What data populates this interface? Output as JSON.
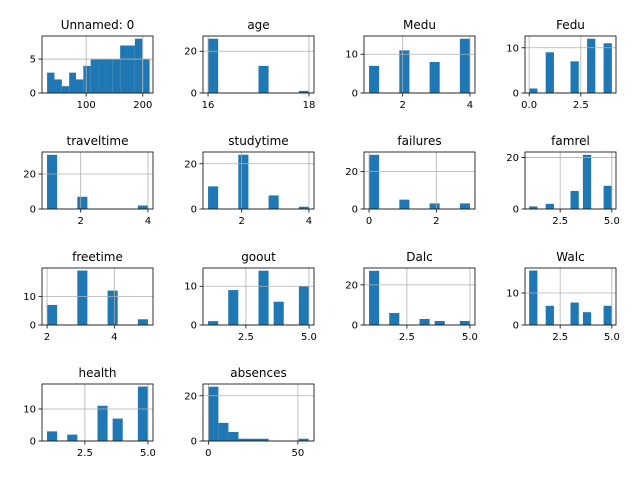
{
  "figure": {
    "bar_color": "#1f77b4",
    "grid_color": "#b0b0b0",
    "grid": true
  },
  "chart_data": [
    {
      "type": "bar",
      "title": "Unnamed: 0",
      "xlim": [
        22,
        218
      ],
      "ylim": [
        0,
        8.4
      ],
      "xticks": [
        {
          "v": 100,
          "l": "100"
        },
        {
          "v": 200,
          "l": "200"
        }
      ],
      "yticks": [
        {
          "v": 0,
          "l": "0"
        },
        {
          "v": 5,
          "l": "5"
        }
      ],
      "bins": [
        [
          31,
          44,
          3
        ],
        [
          44,
          57,
          2
        ],
        [
          57,
          70,
          1
        ],
        [
          70,
          82,
          3
        ],
        [
          82,
          95,
          2
        ],
        [
          95,
          108,
          4
        ],
        [
          108,
          121,
          5
        ],
        [
          121,
          134,
          5
        ],
        [
          134,
          147,
          5
        ],
        [
          147,
          160,
          5
        ],
        [
          160,
          173,
          7
        ],
        [
          173,
          186,
          7
        ],
        [
          186,
          199,
          8
        ],
        [
          199,
          212,
          5
        ]
      ]
    },
    {
      "type": "bar",
      "title": "age",
      "xlim": [
        15.9,
        18.1
      ],
      "ylim": [
        0,
        27.3
      ],
      "xticks": [
        {
          "v": 16,
          "l": "16"
        },
        {
          "v": 18,
          "l": "18"
        }
      ],
      "yticks": [
        {
          "v": 0,
          "l": "0"
        },
        {
          "v": 20,
          "l": "20"
        }
      ],
      "bins": [
        [
          16,
          16.2,
          26
        ],
        [
          16.8,
          17,
          0
        ],
        [
          17,
          17.2,
          13
        ],
        [
          17.8,
          18,
          1
        ]
      ]
    },
    {
      "type": "bar",
      "title": "Medu",
      "xlim": [
        0.85,
        4.15
      ],
      "ylim": [
        0,
        14.7
      ],
      "xticks": [
        {
          "v": 2,
          "l": "2"
        },
        {
          "v": 4,
          "l": "4"
        }
      ],
      "yticks": [
        {
          "v": 0,
          "l": "0"
        },
        {
          "v": 10,
          "l": "10"
        }
      ],
      "bins": [
        [
          1,
          1.3,
          7
        ],
        [
          1.9,
          2.2,
          11
        ],
        [
          2.8,
          3.1,
          8
        ],
        [
          3.7,
          4,
          14
        ]
      ]
    },
    {
      "type": "bar",
      "title": "Fedu",
      "xlim": [
        -0.2,
        4.2
      ],
      "ylim": [
        0,
        12.6
      ],
      "xticks": [
        {
          "v": 0,
          "l": "0.0"
        },
        {
          "v": 2.5,
          "l": "2.5"
        }
      ],
      "yticks": [
        {
          "v": 0,
          "l": "0"
        },
        {
          "v": 10,
          "l": "10"
        }
      ],
      "bins": [
        [
          0,
          0.4,
          1
        ],
        [
          0.8,
          1.2,
          9
        ],
        [
          2,
          2.4,
          7
        ],
        [
          2.8,
          3.2,
          12
        ],
        [
          3.6,
          4,
          11
        ]
      ]
    },
    {
      "type": "bar",
      "title": "traveltime",
      "xlim": [
        0.85,
        4.15
      ],
      "ylim": [
        0,
        32.6
      ],
      "xticks": [
        {
          "v": 2,
          "l": "2"
        },
        {
          "v": 4,
          "l": "4"
        }
      ],
      "yticks": [
        {
          "v": 0,
          "l": "0"
        },
        {
          "v": 20,
          "l": "20"
        }
      ],
      "bins": [
        [
          1,
          1.3,
          31
        ],
        [
          1.9,
          2.2,
          7
        ],
        [
          3.7,
          4,
          2
        ]
      ]
    },
    {
      "type": "bar",
      "title": "studytime",
      "xlim": [
        0.85,
        4.15
      ],
      "ylim": [
        0,
        25.2
      ],
      "xticks": [
        {
          "v": 2,
          "l": "2"
        },
        {
          "v": 4,
          "l": "4"
        }
      ],
      "yticks": [
        {
          "v": 0,
          "l": "0"
        },
        {
          "v": 20,
          "l": "20"
        }
      ],
      "bins": [
        [
          1,
          1.3,
          10
        ],
        [
          1.9,
          2.2,
          24
        ],
        [
          2.8,
          3.1,
          6
        ],
        [
          3.7,
          4,
          1
        ]
      ]
    },
    {
      "type": "bar",
      "title": "failures",
      "xlim": [
        -0.15,
        3.15
      ],
      "ylim": [
        0,
        30.5
      ],
      "xticks": [
        {
          "v": 0,
          "l": "0"
        },
        {
          "v": 2,
          "l": "2"
        }
      ],
      "yticks": [
        {
          "v": 0,
          "l": "0"
        },
        {
          "v": 20,
          "l": "20"
        }
      ],
      "bins": [
        [
          0,
          0.3,
          29
        ],
        [
          0.9,
          1.2,
          5
        ],
        [
          1.8,
          2.1,
          3
        ],
        [
          2.7,
          3,
          3
        ]
      ]
    },
    {
      "type": "bar",
      "title": "famrel",
      "xlim": [
        0.8,
        5.2
      ],
      "ylim": [
        0,
        22.1
      ],
      "xticks": [
        {
          "v": 2.5,
          "l": "2.5"
        },
        {
          "v": 5,
          "l": "5.0"
        }
      ],
      "yticks": [
        {
          "v": 0,
          "l": "0"
        },
        {
          "v": 20,
          "l": "20"
        }
      ],
      "bins": [
        [
          1,
          1.4,
          1
        ],
        [
          1.8,
          2.2,
          2
        ],
        [
          3,
          3.4,
          7
        ],
        [
          3.6,
          4,
          21
        ],
        [
          4.6,
          5,
          9
        ]
      ]
    },
    {
      "type": "bar",
      "title": "freetime",
      "xlim": [
        1.85,
        5.15
      ],
      "ylim": [
        0,
        19.9
      ],
      "xticks": [
        {
          "v": 2,
          "l": "2"
        },
        {
          "v": 4,
          "l": "4"
        }
      ],
      "yticks": [
        {
          "v": 0,
          "l": "0"
        },
        {
          "v": 10,
          "l": "10"
        }
      ],
      "bins": [
        [
          2,
          2.3,
          7
        ],
        [
          2.9,
          3.2,
          19
        ],
        [
          3.8,
          4.1,
          12
        ],
        [
          4.7,
          5,
          2
        ]
      ]
    },
    {
      "type": "bar",
      "title": "goout",
      "xlim": [
        0.8,
        5.2
      ],
      "ylim": [
        0,
        14.7
      ],
      "xticks": [
        {
          "v": 2.5,
          "l": "2.5"
        },
        {
          "v": 5,
          "l": "5.0"
        }
      ],
      "yticks": [
        {
          "v": 0,
          "l": "0"
        },
        {
          "v": 10,
          "l": "10"
        }
      ],
      "bins": [
        [
          1,
          1.4,
          1
        ],
        [
          1.8,
          2.2,
          9
        ],
        [
          3,
          3.4,
          14
        ],
        [
          3.6,
          4,
          6
        ],
        [
          4.6,
          5,
          10
        ]
      ]
    },
    {
      "type": "bar",
      "title": "Dalc",
      "xlim": [
        0.8,
        5.2
      ],
      "ylim": [
        0,
        28.4
      ],
      "xticks": [
        {
          "v": 2.5,
          "l": "2.5"
        },
        {
          "v": 5,
          "l": "5.0"
        }
      ],
      "yticks": [
        {
          "v": 0,
          "l": "0"
        },
        {
          "v": 20,
          "l": "20"
        }
      ],
      "bins": [
        [
          1,
          1.4,
          27
        ],
        [
          1.8,
          2.2,
          6
        ],
        [
          3,
          3.4,
          3
        ],
        [
          3.6,
          4,
          2
        ],
        [
          4.6,
          5,
          2
        ]
      ]
    },
    {
      "type": "bar",
      "title": "Walc",
      "xlim": [
        0.8,
        5.2
      ],
      "ylim": [
        0,
        17.8
      ],
      "xticks": [
        {
          "v": 2.5,
          "l": "2.5"
        },
        {
          "v": 5,
          "l": "5.0"
        }
      ],
      "yticks": [
        {
          "v": 0,
          "l": "0"
        },
        {
          "v": 10,
          "l": "10"
        }
      ],
      "bins": [
        [
          1,
          1.4,
          17
        ],
        [
          1.8,
          2.2,
          6
        ],
        [
          3,
          3.4,
          7
        ],
        [
          3.6,
          4,
          4
        ],
        [
          4.6,
          5,
          6
        ]
      ]
    },
    {
      "type": "bar",
      "title": "health",
      "xlim": [
        0.8,
        5.2
      ],
      "ylim": [
        0,
        17.8
      ],
      "xticks": [
        {
          "v": 2.5,
          "l": "2.5"
        },
        {
          "v": 5,
          "l": "5.0"
        }
      ],
      "yticks": [
        {
          "v": 0,
          "l": "0"
        },
        {
          "v": 10,
          "l": "10"
        }
      ],
      "bins": [
        [
          1,
          1.4,
          3
        ],
        [
          1.8,
          2.2,
          2
        ],
        [
          3,
          3.4,
          11
        ],
        [
          3.6,
          4,
          7
        ],
        [
          4.6,
          5,
          17
        ]
      ]
    },
    {
      "type": "bar",
      "title": "absences",
      "xlim": [
        -3,
        59
      ],
      "ylim": [
        0,
        25.2
      ],
      "xticks": [
        {
          "v": 0,
          "l": "0"
        },
        {
          "v": 50,
          "l": "50"
        }
      ],
      "yticks": [
        {
          "v": 0,
          "l": "0"
        },
        {
          "v": 20,
          "l": "20"
        }
      ],
      "bins": [
        [
          0,
          5.6,
          24
        ],
        [
          5.6,
          11.2,
          8
        ],
        [
          11.2,
          16.8,
          4
        ],
        [
          16.8,
          22.4,
          1
        ],
        [
          22.4,
          28,
          1
        ],
        [
          28,
          33.6,
          1
        ],
        [
          33.6,
          39.2,
          0
        ],
        [
          39.2,
          44.8,
          0
        ],
        [
          44.8,
          50.4,
          0
        ],
        [
          50.4,
          56,
          1
        ]
      ]
    }
  ]
}
